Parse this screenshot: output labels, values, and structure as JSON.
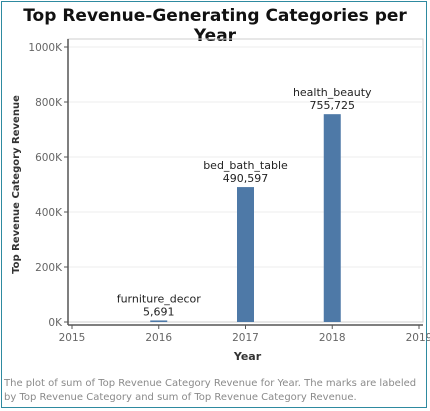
{
  "title": "Top Revenue-Generating Categories per Year",
  "caption": "The plot of sum of Top Revenue Category Revenue for Year.  The marks are labeled by Top Revenue Category and sum of Top Revenue Category Revenue.",
  "colors": {
    "bar": "#4e79a7",
    "axis": "#555555",
    "tick_text": "#666666",
    "grid": "#eeeeee",
    "label_text": "#222222",
    "frame": "#2e8aa0"
  },
  "chart_data": {
    "type": "bar",
    "title": "Top Revenue-Generating Categories per Year",
    "xlabel": "Year",
    "ylabel": "Top Revenue Category Revenue",
    "xlim": [
      2015,
      2019
    ],
    "ylim": [
      0,
      1000000
    ],
    "x_ticks": [
      {
        "value": 2015,
        "label": "2015"
      },
      {
        "value": 2016,
        "label": "2016"
      },
      {
        "value": 2017,
        "label": "2017"
      },
      {
        "value": 2018,
        "label": "2018"
      },
      {
        "value": 2019,
        "label": "2019"
      }
    ],
    "y_ticks": [
      {
        "value": 0,
        "label": "0K"
      },
      {
        "value": 200000,
        "label": "200K"
      },
      {
        "value": 400000,
        "label": "400K"
      },
      {
        "value": 600000,
        "label": "600K"
      },
      {
        "value": 800000,
        "label": "800K"
      },
      {
        "value": 1000000,
        "label": "1000K"
      }
    ],
    "grid": true,
    "bars": [
      {
        "year": 2016,
        "value": 5691,
        "category": "furniture_decor",
        "value_label": "5,691"
      },
      {
        "year": 2017,
        "value": 490597,
        "category": "bed_bath_table",
        "value_label": "490,597"
      },
      {
        "year": 2018,
        "value": 755725,
        "category": "health_beauty",
        "value_label": "755,725"
      }
    ]
  }
}
